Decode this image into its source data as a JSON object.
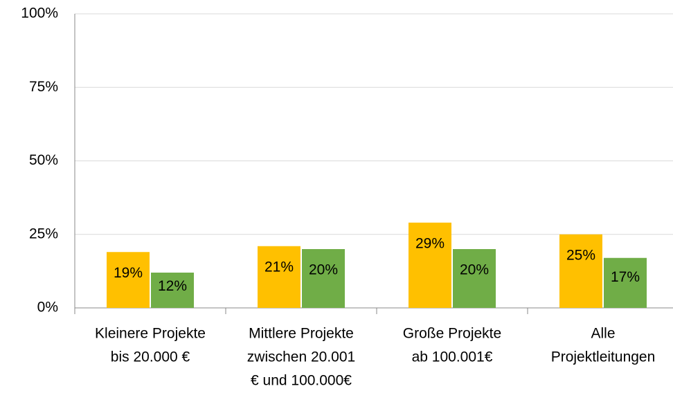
{
  "chart_data": {
    "type": "bar",
    "categories": [
      [
        "Kleinere Projekte",
        "bis 20.000 €"
      ],
      [
        "Mittlere Projekte",
        "zwischen 20.001",
        "€ und 100.000€"
      ],
      [
        "Große Projekte",
        "ab 100.001€"
      ],
      [
        "Alle",
        "Projektleitungen"
      ]
    ],
    "series": [
      {
        "color": "#FFC000",
        "values": [
          19,
          21,
          29,
          25
        ],
        "value_labels": [
          "19%",
          "21%",
          "29%",
          "25%"
        ]
      },
      {
        "color": "#70AD47",
        "values": [
          12,
          20,
          20,
          17
        ],
        "value_labels": [
          "12%",
          "20%",
          "20%",
          "17%"
        ]
      }
    ],
    "ylim": [
      0,
      100
    ],
    "yticks": [
      {
        "value": 0,
        "label": "0%"
      },
      {
        "value": 25,
        "label": "25%"
      },
      {
        "value": 50,
        "label": "50%"
      },
      {
        "value": 75,
        "label": "75%"
      },
      {
        "value": 100,
        "label": "100%"
      }
    ],
    "grid": true
  }
}
